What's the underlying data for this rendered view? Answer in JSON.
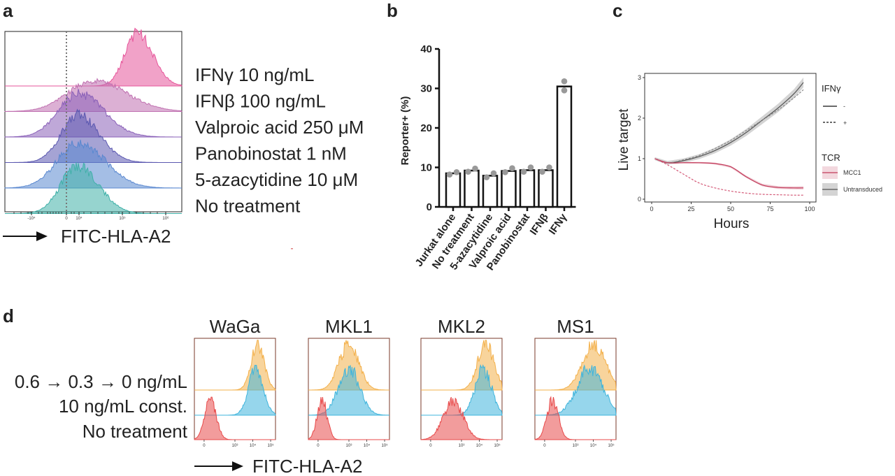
{
  "panels": {
    "a": "a",
    "b": "b",
    "c": "c",
    "d": "d"
  },
  "chart_data": [
    {
      "type": "area",
      "panel": "a",
      "xlabel": "FITC-HLA-A2",
      "xticks": [
        "-10⁴",
        "0",
        "10⁴",
        "10⁵",
        "10⁶"
      ],
      "series": [
        {
          "name": "IFNγ 10 ng/mL",
          "color": "#e6559a",
          "peak": 220000,
          "spread": 0.11,
          "height": 0.95
        },
        {
          "name": "IFNβ 100 ng/mL",
          "color": "#c070b0",
          "peak": 22000,
          "spread": 0.23,
          "height": 0.58
        },
        {
          "name": "Valproic acid 250 μM",
          "color": "#8a60b8",
          "peak": 7500,
          "spread": 0.18,
          "height": 0.82
        },
        {
          "name": "Panobinostat 1 nM",
          "color": "#5b58b0",
          "peak": 4800,
          "spread": 0.15,
          "height": 0.9
        },
        {
          "name": "5-azacytidine 10 μM",
          "color": "#5a88d0",
          "peak": 7000,
          "spread": 0.19,
          "height": 0.85
        },
        {
          "name": "No treatment",
          "color": "#3fb0a8",
          "peak": 3800,
          "spread": 0.15,
          "height": 0.9
        }
      ],
      "ref_line": "dotted"
    },
    {
      "type": "bar",
      "panel": "b",
      "ylabel": "Reporter+ (%)",
      "ylim": [
        0,
        40
      ],
      "yticks": [
        0,
        10,
        20,
        30,
        40
      ],
      "categories": [
        "Jurkat alone",
        "No treatment",
        "5-azacytidine",
        "Valproic acid",
        "Panobinostat",
        "IFNβ",
        "IFNγ"
      ],
      "values": [
        8.5,
        9.2,
        7.9,
        9.1,
        9.3,
        9.3,
        30.5
      ],
      "points": [
        [
          8.2,
          8.8
        ],
        [
          8.9,
          9.7
        ],
        [
          7.5,
          8.5
        ],
        [
          8.8,
          9.8
        ],
        [
          8.9,
          10.0
        ],
        [
          8.9,
          10.0
        ],
        [
          29.5,
          31.8
        ]
      ]
    },
    {
      "type": "line",
      "panel": "c",
      "xlabel": "Hours",
      "ylabel": "Live target",
      "xlim": [
        0,
        100
      ],
      "ylim": [
        0,
        3
      ],
      "xticks": [
        0,
        25,
        50,
        75,
        100
      ],
      "yticks": [
        0,
        1,
        2,
        3
      ],
      "x": [
        2,
        10,
        20,
        30,
        40,
        50,
        60,
        70,
        80,
        90,
        96
      ],
      "series": [
        {
          "name": "Untransduced IFNγ -",
          "color": "#555555",
          "dash": false,
          "band": 0.12,
          "values": [
            1.0,
            0.9,
            0.95,
            1.05,
            1.2,
            1.4,
            1.65,
            1.95,
            2.25,
            2.6,
            2.88
          ]
        },
        {
          "name": "Untransduced IFNγ +",
          "color": "#888888",
          "dash": true,
          "band": 0.0,
          "values": [
            1.0,
            0.9,
            0.97,
            1.08,
            1.25,
            1.45,
            1.7,
            1.95,
            2.2,
            2.5,
            2.7
          ]
        },
        {
          "name": "MCC1 IFNγ -",
          "color": "#c23a5a",
          "dash": false,
          "band": 0.04,
          "values": [
            1.0,
            0.9,
            0.9,
            0.9,
            0.88,
            0.8,
            0.55,
            0.35,
            0.29,
            0.28,
            0.28
          ]
        },
        {
          "name": "MCC1 IFNγ +",
          "color": "#d45a78",
          "dash": true,
          "band": 0.0,
          "values": [
            1.0,
            0.85,
            0.62,
            0.4,
            0.28,
            0.2,
            0.15,
            0.12,
            0.11,
            0.1,
            0.1
          ]
        }
      ],
      "legend": {
        "ifn_title": "IFNγ",
        "ifn_items": [
          "-",
          "+"
        ],
        "tcr_title": "TCR",
        "tcr_items": [
          "MCC1",
          "Untransduced"
        ]
      }
    },
    {
      "type": "area",
      "panel": "d",
      "xlabel": "FITC-HLA-A2",
      "row_labels": [
        "0.6 → 0.3 → 0 ng/mL",
        "10 ng/mL const.",
        "No treatment"
      ],
      "colors": [
        "#f3b04a",
        "#3fb4dc",
        "#e84a4a"
      ],
      "xticks": [
        "0",
        "10³",
        "10⁴",
        "10⁵"
      ],
      "cells": [
        {
          "name": "WaGa",
          "peaks": [
            0.78,
            0.76,
            0.2
          ],
          "spreads": [
            0.08,
            0.09,
            0.07
          ]
        },
        {
          "name": "MKL1",
          "peaks": [
            0.5,
            0.5,
            0.17
          ],
          "spreads": [
            0.12,
            0.13,
            0.06
          ]
        },
        {
          "name": "MKL2",
          "peaks": [
            0.8,
            0.77,
            0.4
          ],
          "spreads": [
            0.1,
            0.1,
            0.12
          ]
        },
        {
          "name": "MS1",
          "peaks": [
            0.73,
            0.68,
            0.22
          ],
          "spreads": [
            0.14,
            0.16,
            0.07
          ]
        }
      ]
    }
  ]
}
